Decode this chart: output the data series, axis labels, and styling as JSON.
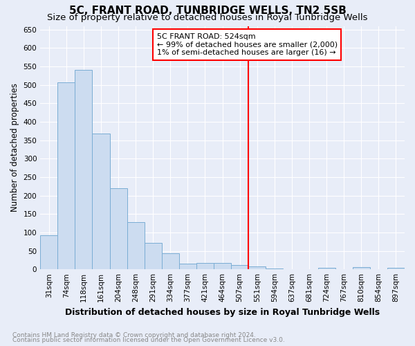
{
  "title": "5C, FRANT ROAD, TUNBRIDGE WELLS, TN2 5SB",
  "subtitle": "Size of property relative to detached houses in Royal Tunbridge Wells",
  "xlabel": "Distribution of detached houses by size in Royal Tunbridge Wells",
  "ylabel": "Number of detached properties",
  "footnote1": "Contains HM Land Registry data © Crown copyright and database right 2024.",
  "footnote2": "Contains public sector information licensed under the Open Government Licence v3.0.",
  "categories": [
    "31sqm",
    "74sqm",
    "118sqm",
    "161sqm",
    "204sqm",
    "248sqm",
    "291sqm",
    "334sqm",
    "377sqm",
    "421sqm",
    "464sqm",
    "507sqm",
    "551sqm",
    "594sqm",
    "637sqm",
    "681sqm",
    "724sqm",
    "767sqm",
    "810sqm",
    "854sqm",
    "897sqm"
  ],
  "values": [
    93,
    507,
    540,
    368,
    220,
    128,
    71,
    43,
    16,
    18,
    18,
    11,
    7,
    3,
    0,
    0,
    5,
    0,
    6,
    0,
    5
  ],
  "bar_color": "#ccdcf0",
  "bar_edge_color": "#7aadd4",
  "vline_position": 11.5,
  "vline_color": "red",
  "annotation_box_text": "5C FRANT ROAD: 524sqm\n← 99% of detached houses are smaller (2,000)\n1% of semi-detached houses are larger (16) →",
  "ylim": [
    0,
    660
  ],
  "yticks": [
    0,
    50,
    100,
    150,
    200,
    250,
    300,
    350,
    400,
    450,
    500,
    550,
    600,
    650
  ],
  "bg_color": "#e8edf8",
  "grid_color": "#d0d8e8",
  "title_fontsize": 11,
  "subtitle_fontsize": 9.5,
  "xlabel_fontsize": 9,
  "ylabel_fontsize": 8.5,
  "tick_fontsize": 7.5,
  "footnote_fontsize": 6.5,
  "annotation_fontsize": 8
}
